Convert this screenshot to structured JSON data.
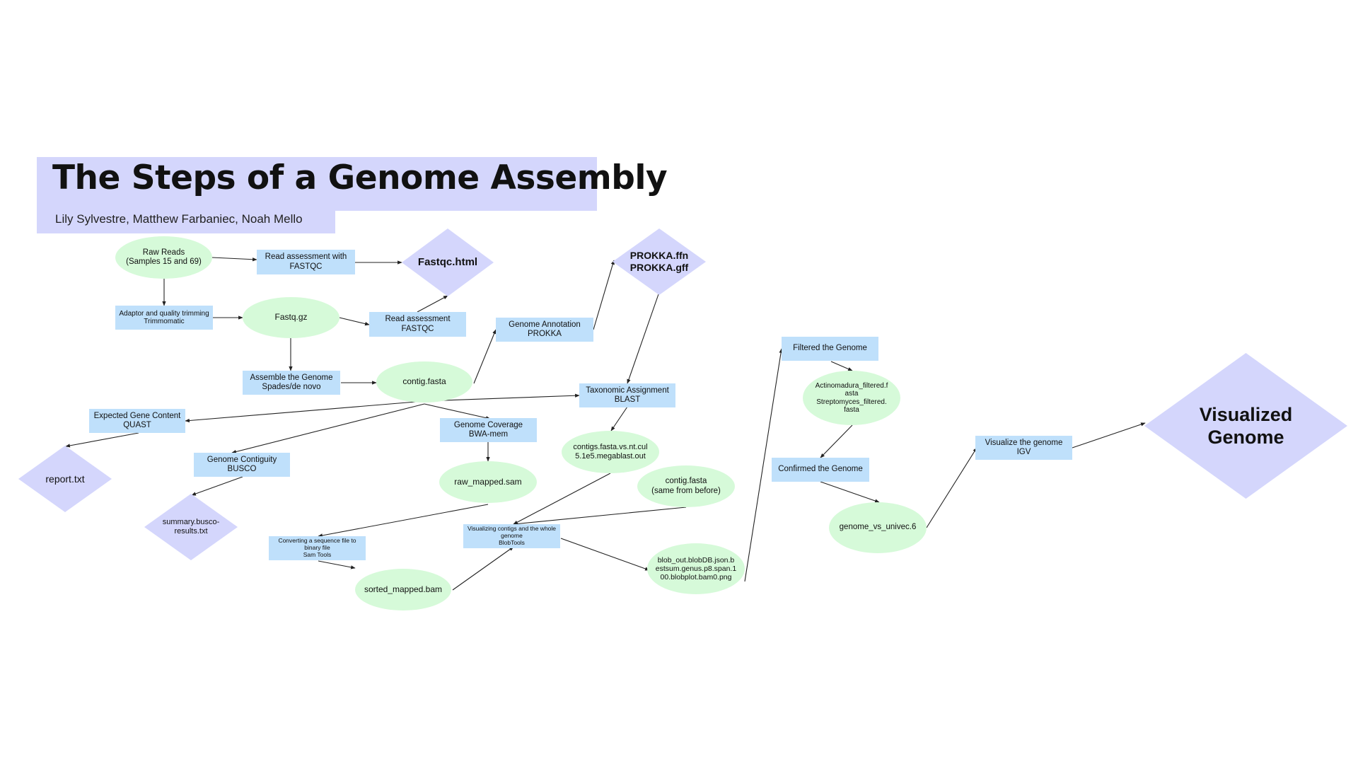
{
  "title": "The Steps of a Genome Assembly",
  "authors": "Lily Sylvestre, Matthew Farbaniec, Noah Mello",
  "colors": {
    "title_bg": "#d4d6fc",
    "process_box": "#bfe0fb",
    "file_oval": "#d6fad9",
    "output_diamond": "#d4d6fc",
    "arrow": "#222222"
  },
  "nodes": {
    "raw_reads": "Raw Reads\n(Samples 15 and 69)",
    "read_assess_1": "Read assessment with\nFASTQC",
    "fastqc_html": "Fastqc.html",
    "trimming": "Adaptor and quality trimming\nTrimmomatic",
    "fastq_gz": "Fastq.gz",
    "read_assess_2": "Read assessment\nFASTQC",
    "assemble": "Assemble the Genome\nSpades/de novo",
    "contig_fasta": "contig.fasta",
    "annotation": "Genome Annotation\nPROKKA",
    "prokka_out": "PROKKA.ffn\nPROKKA.gff",
    "taxonomic": "Taxonomic Assignment\nBLAST",
    "gene_content": "Expected Gene Content\nQUAST",
    "report_txt": "report.txt",
    "contiguity": "Genome Contiguity\nBUSCO",
    "busco_results": "summary.busco-\nresults.txt",
    "coverage": "Genome Coverage\nBWA-mem",
    "raw_mapped": "raw_mapped.sam",
    "megablast": "contigs.fasta.vs.nt.cul\n5.1e5.megablast.out",
    "contig_fasta_before": "contig.fasta\n(same from before)",
    "sam_tools": "Converting a sequence file to\nbinary file\nSam Tools",
    "blobtools": "Visualizing contigs and the whole\ngenome\nBlobTools",
    "sorted_mapped": "sorted_mapped.bam",
    "blob_out": "blob_out.blobDB.json.b\nestsum.genus.p8.span.1\n00.blobplot.bam0.png",
    "filtered": "Filtered the Genome",
    "filtered_files": "Actinomadura_filtered.f\nasta\nStreptomyces_filtered.\nfasta",
    "confirmed": "Confirmed the Genome",
    "univec": "genome_vs_univec.6",
    "igv": "Visualize the genome\nIGV",
    "visualized": "Visualized\nGenome"
  }
}
